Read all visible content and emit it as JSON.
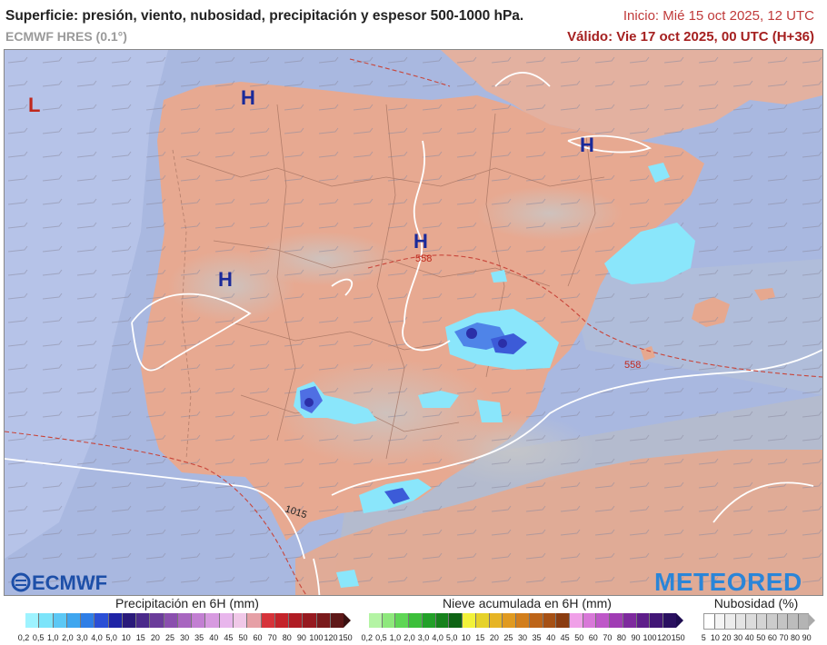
{
  "header": {
    "title": "Superficie: presión, viento, nubosidad, precipitación y espesor 500-1000 hPa.",
    "model": "ECMWF HRES (0.1°)",
    "init": "Inicio: Mié 15 oct 2025, 12 UTC",
    "valid": "Válido: Vie 17 oct 2025, 00 UTC (H+36)"
  },
  "map": {
    "pressure_centers": [
      {
        "kind": "L",
        "color": "#c0281c"
      },
      {
        "kind": "H",
        "color": "#1a2a9a"
      },
      {
        "kind": "H",
        "color": "#1a2a9a"
      },
      {
        "kind": "H",
        "color": "#1a2a9a"
      },
      {
        "kind": "H",
        "color": "#1a2a9a"
      }
    ],
    "labels": {
      "thickness_558_a": "558",
      "thickness_558_b": "558",
      "isobar_1015": "1015"
    },
    "logos": {
      "left": "ECMWF",
      "right": "METEORED"
    }
  },
  "legends": {
    "precip": {
      "title": "Precipitación en 6H (mm)",
      "ticks": [
        "0,2",
        "0,5",
        "1,0",
        "2,0",
        "3,0",
        "4,0",
        "5,0",
        "10",
        "15",
        "20",
        "25",
        "30",
        "35",
        "40",
        "45",
        "50",
        "60",
        "70",
        "80",
        "90",
        "100",
        "120",
        "150"
      ],
      "colors": [
        "#9ef3ff",
        "#7ce4fa",
        "#5cc8f5",
        "#3fa6ef",
        "#2f7ee6",
        "#2b4fd6",
        "#1f24a6",
        "#2a1a7a",
        "#4a2a8a",
        "#6a3c9a",
        "#8a4fae",
        "#a866c0",
        "#c27fd2",
        "#d79ae0",
        "#e8b6ec",
        "#f0c8e8",
        "#e6a0a6",
        "#d6333a",
        "#c4232a",
        "#b01c24",
        "#961a20",
        "#7a1a1c",
        "#5e1818"
      ]
    },
    "snow": {
      "title": "Nieve acumulada en 6H (mm)",
      "ticks": [
        "0,2",
        "0,5",
        "1,0",
        "2,0",
        "3,0",
        "4,0",
        "5,0",
        "10",
        "15",
        "20",
        "25",
        "30",
        "35",
        "40",
        "45",
        "50",
        "60",
        "70",
        "80",
        "90",
        "100",
        "120",
        "150"
      ],
      "colors": [
        "#b4f4a4",
        "#8ee87c",
        "#5fd656",
        "#3cbf3a",
        "#22a028",
        "#16821c",
        "#0e6414",
        "#f2f23a",
        "#e6d22a",
        "#e6b424",
        "#e09a20",
        "#d27e1c",
        "#bd6418",
        "#a65014",
        "#8a3c10",
        "#f0a0e8",
        "#d878d8",
        "#be58c8",
        "#a03cb4",
        "#7e2a9e",
        "#5e1e8a",
        "#421676",
        "#2a1060"
      ]
    },
    "cloud": {
      "title": "Nubosidad (%)",
      "ticks": [
        "5",
        "10",
        "20",
        "30",
        "40",
        "50",
        "60",
        "70",
        "80",
        "90"
      ],
      "colors": [
        "#ffffff",
        "#f4f4f4",
        "#ececec",
        "#e4e4e4",
        "#dcdcdc",
        "#d4d4d4",
        "#cccccc",
        "#c4c4c4",
        "#bcbcbc",
        "#b4b4b4"
      ]
    }
  }
}
